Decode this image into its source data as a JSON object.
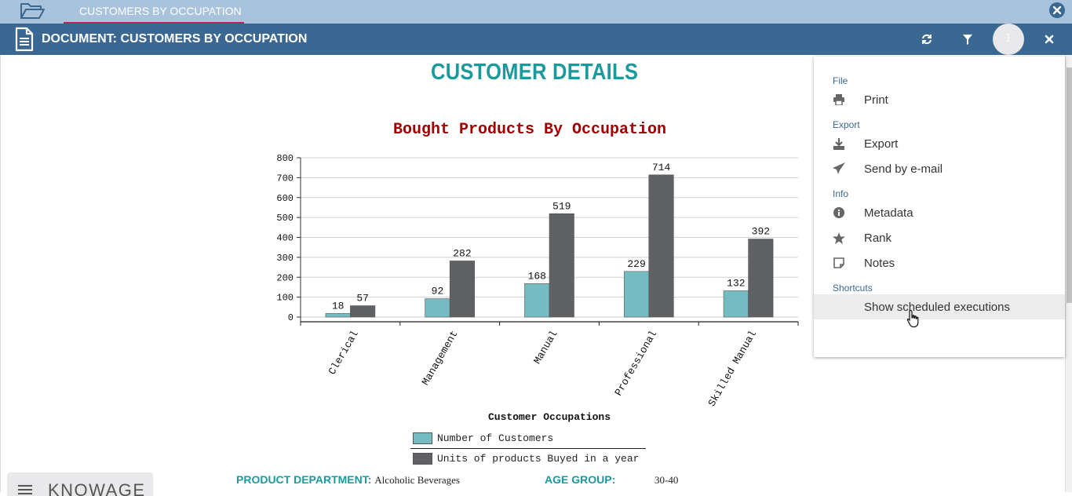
{
  "topbar": {
    "tab_label": "CUSTOMERS BY OCCUPATION"
  },
  "docbar": {
    "title": "DOCUMENT: CUSTOMERS BY OCCUPATION"
  },
  "report": {
    "heading": "CUSTOMER DETAILS",
    "footer": {
      "dept_label": "PRODUCT DEPARTMENT:",
      "dept_value": "Alcoholic Beverages",
      "age_label": "AGE GROUP:",
      "age_value": "30-40"
    },
    "brand": "KNOWAGE"
  },
  "chart_data": {
    "type": "bar",
    "title": "Bought Products By Occupation",
    "xlabel": "Customer Occupations",
    "ylabel": "",
    "ylim": [
      0,
      800
    ],
    "yticks": [
      0,
      100,
      200,
      300,
      400,
      500,
      600,
      700,
      800
    ],
    "categories": [
      "Clerical",
      "Management",
      "Manual",
      "Professional",
      "Skilled Manual"
    ],
    "series": [
      {
        "name": "Number of Customers",
        "values": [
          18,
          92,
          168,
          229,
          132
        ],
        "color": "#74bcc2"
      },
      {
        "name": "Units of products Buyed in a year",
        "values": [
          57,
          282,
          519,
          714,
          392
        ],
        "color": "#5f6165"
      }
    ],
    "grid": true,
    "legend": "bottom"
  },
  "menu": {
    "sections": [
      {
        "label": "File",
        "items": [
          {
            "label": "Print",
            "icon": "print-icon"
          }
        ]
      },
      {
        "label": "Export",
        "items": [
          {
            "label": "Export",
            "icon": "download-icon"
          },
          {
            "label": "Send by e-mail",
            "icon": "paper-plane-icon"
          }
        ]
      },
      {
        "label": "Info",
        "items": [
          {
            "label": "Metadata",
            "icon": "info-icon"
          },
          {
            "label": "Rank",
            "icon": "star-icon"
          },
          {
            "label": "Notes",
            "icon": "note-icon"
          }
        ]
      },
      {
        "label": "Shortcuts",
        "items": [
          {
            "label": "Show scheduled executions",
            "icon": ""
          }
        ]
      }
    ]
  },
  "colors": {
    "topbar": "#a9c3dc",
    "docbar": "#3b6892",
    "accent": "#1a9a9c",
    "chart_title": "#a00000"
  }
}
